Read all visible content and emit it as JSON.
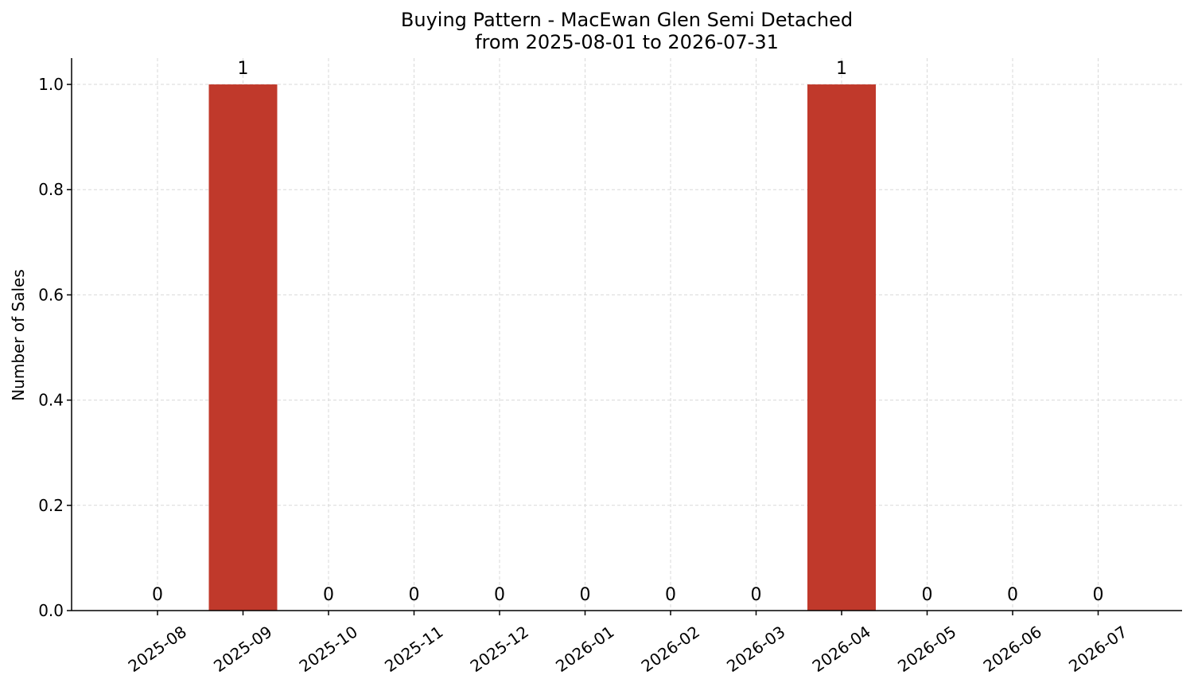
{
  "chart_data": {
    "type": "bar",
    "title_line1": "Buying Pattern - MacEwan Glen Semi Detached",
    "title_line2": "from 2025-08-01 to 2026-07-31",
    "xlabel": "",
    "ylabel": "Number of Sales",
    "categories": [
      "2025-08",
      "2025-09",
      "2025-10",
      "2025-11",
      "2025-12",
      "2026-01",
      "2026-02",
      "2026-03",
      "2026-04",
      "2026-05",
      "2026-06",
      "2026-07"
    ],
    "values": [
      0,
      1,
      0,
      0,
      0,
      0,
      0,
      0,
      1,
      0,
      0,
      0
    ],
    "ylim": [
      0,
      1.05
    ],
    "yticks": [
      "0.0",
      "0.2",
      "0.4",
      "0.6",
      "0.8",
      "1.0"
    ],
    "ytick_values": [
      0,
      0.2,
      0.4,
      0.6,
      0.8,
      1.0
    ],
    "bar_color": "#c0392b",
    "grid": true
  }
}
